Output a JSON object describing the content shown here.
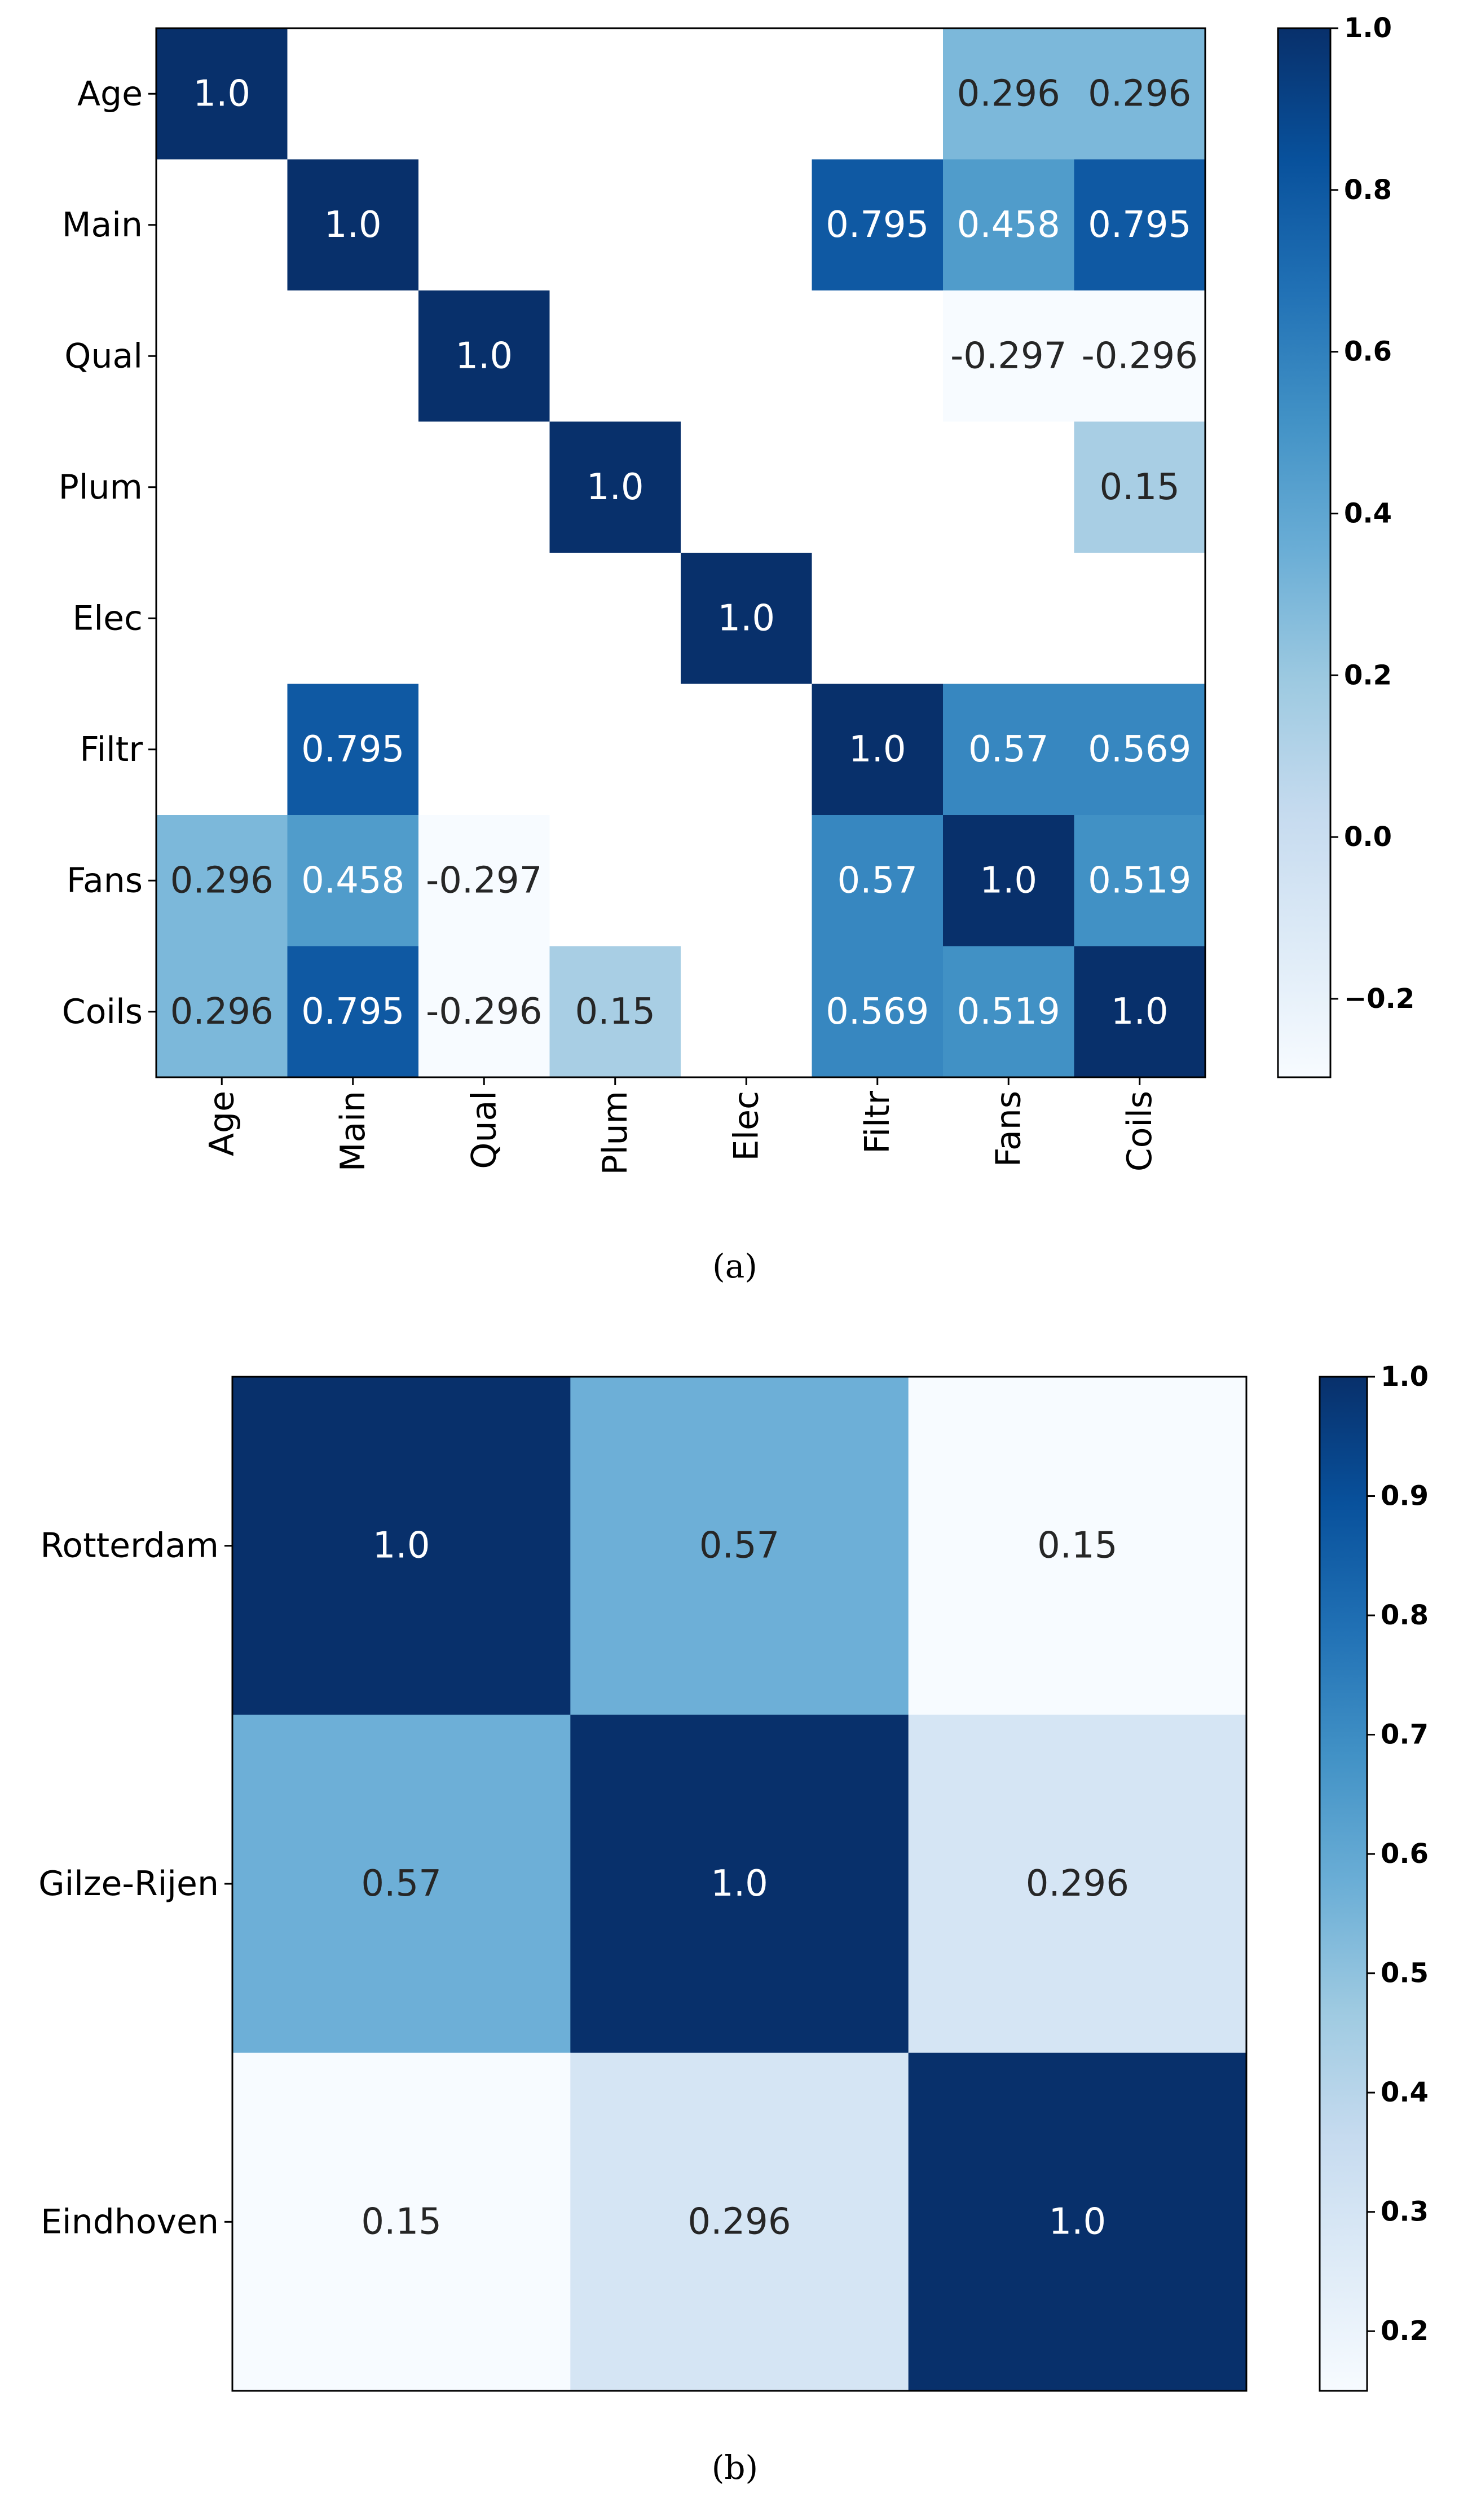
{
  "chart_data": [
    {
      "type": "heatmap",
      "caption": "(a)",
      "labels": [
        "Age",
        "Main",
        "Qual",
        "Plum",
        "Elec",
        "Filtr",
        "Fans",
        "Coils"
      ],
      "matrix": [
        [
          1.0,
          null,
          null,
          null,
          null,
          null,
          0.296,
          0.296
        ],
        [
          null,
          1.0,
          null,
          null,
          null,
          0.795,
          0.458,
          0.795
        ],
        [
          null,
          null,
          1.0,
          null,
          null,
          null,
          -0.297,
          -0.296
        ],
        [
          null,
          null,
          null,
          1.0,
          null,
          null,
          null,
          0.15
        ],
        [
          null,
          null,
          null,
          null,
          1.0,
          null,
          null,
          null
        ],
        [
          null,
          0.795,
          null,
          null,
          null,
          1.0,
          0.57,
          0.569
        ],
        [
          0.296,
          0.458,
          -0.297,
          null,
          null,
          0.57,
          1.0,
          0.519
        ],
        [
          0.296,
          0.795,
          -0.296,
          0.15,
          null,
          0.569,
          0.519,
          1.0
        ]
      ],
      "display": [
        [
          "1.0",
          "",
          "",
          "",
          "",
          "",
          "0.296",
          "0.296"
        ],
        [
          "",
          "1.0",
          "",
          "",
          "",
          "0.795",
          "0.458",
          "0.795"
        ],
        [
          "",
          "",
          "1.0",
          "",
          "",
          "",
          "-0.297",
          "-0.296"
        ],
        [
          "",
          "",
          "",
          "1.0",
          "",
          "",
          "",
          "0.15"
        ],
        [
          "",
          "",
          "",
          "",
          "1.0",
          "",
          "",
          ""
        ],
        [
          "",
          "0.795",
          "",
          "",
          "",
          "1.0",
          "0.57",
          "0.569"
        ],
        [
          "0.296",
          "0.458",
          "-0.297",
          "",
          "",
          "0.57",
          "1.0",
          "0.519"
        ],
        [
          "0.296",
          "0.795",
          "-0.296",
          "0.15",
          "",
          "0.569",
          "0.519",
          "1.0"
        ]
      ],
      "colorbar": {
        "vmin": -0.297,
        "vmax": 1.0,
        "ticks": [
          1.0,
          0.8,
          0.6,
          0.4,
          0.2,
          0.0,
          -0.2
        ],
        "tick_labels": [
          "1.0",
          "0.8",
          "0.6",
          "0.4",
          "0.2",
          "0.0",
          "−0.2"
        ]
      },
      "colormap": "Blues"
    },
    {
      "type": "heatmap",
      "caption": "(b)",
      "labels": [
        "Rotterdam",
        "Gilze-Rijen",
        "Eindhoven"
      ],
      "matrix": [
        [
          1.0,
          0.57,
          0.15
        ],
        [
          0.57,
          1.0,
          0.296
        ],
        [
          0.15,
          0.296,
          1.0
        ]
      ],
      "display": [
        [
          "1.0",
          "0.57",
          "0.15"
        ],
        [
          "0.57",
          "1.0",
          "0.296"
        ],
        [
          "0.15",
          "0.296",
          "1.0"
        ]
      ],
      "colorbar": {
        "vmin": 0.15,
        "vmax": 1.0,
        "ticks": [
          1.0,
          0.9,
          0.8,
          0.7,
          0.6,
          0.5,
          0.4,
          0.3,
          0.2
        ],
        "tick_labels": [
          "1.0",
          "0.9",
          "0.8",
          "0.7",
          "0.6",
          "0.5",
          "0.4",
          "0.3",
          "0.2"
        ]
      },
      "colormap": "Blues"
    }
  ]
}
